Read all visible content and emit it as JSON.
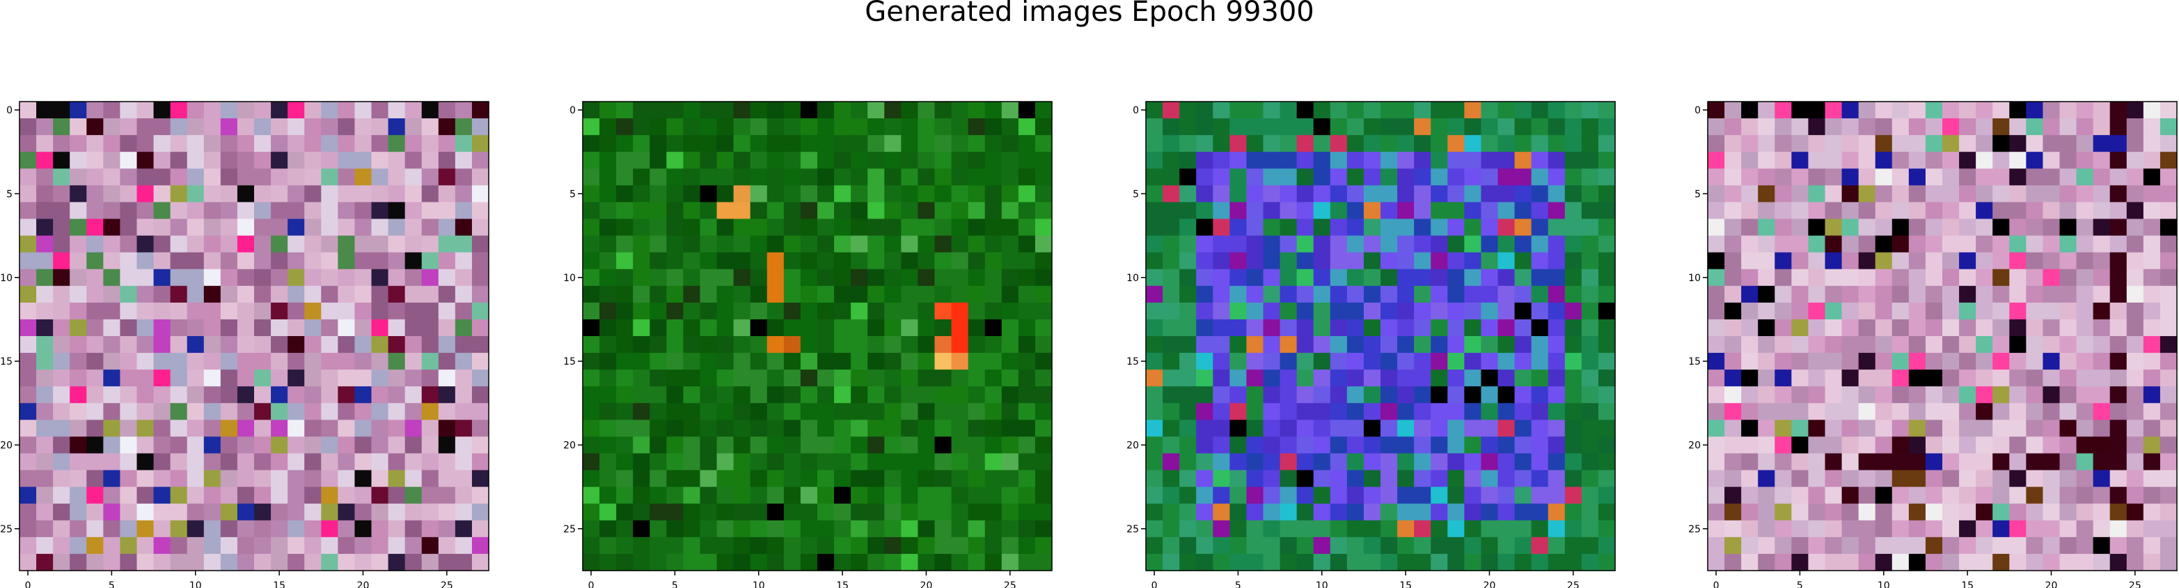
{
  "figure": {
    "title": "Generated images Epoch 99300"
  },
  "chart_data": [
    {
      "type": "heatmap",
      "title": "",
      "grid": false,
      "grid_size": [
        28,
        28
      ],
      "xlim": [
        -0.5,
        27.5
      ],
      "ylim": [
        27.5,
        -0.5
      ],
      "xticks": [
        0,
        5,
        10,
        15,
        20,
        25
      ],
      "yticks": [
        0,
        5,
        10,
        15,
        20,
        25
      ],
      "palette": [
        "#d4a3c8",
        "#c98bb8",
        "#e6c4d8",
        "#b884b0",
        "#a36a98",
        "#dcb6d0",
        "#8f5a86",
        "#e0d0e4",
        "#c4a0bc",
        "#b07aa4",
        "#d9b0cc",
        "#a8a8c8"
      ],
      "accents": [
        "#3a0010",
        "#6a0a30",
        "#2a1a40",
        "#ff2090",
        "#c040c0",
        "#9aa040",
        "#4a8a4a",
        "#f0f0f8",
        "#0a0a0a",
        "#1a2aa0",
        "#c09020",
        "#70c0a0"
      ],
      "accent_rate": 0.22,
      "seed": 11
    },
    {
      "type": "heatmap",
      "title": "",
      "grid": false,
      "grid_size": [
        28,
        28
      ],
      "xlim": [
        -0.5,
        27.5
      ],
      "ylim": [
        27.5,
        -0.5
      ],
      "xticks": [
        0,
        5,
        10,
        15,
        20,
        25
      ],
      "yticks": [
        0,
        5,
        10,
        15,
        20,
        25
      ],
      "palette": [
        "#0b6a0b",
        "#136f13",
        "#0e5a0e",
        "#1a7a1a",
        "#0a5a08",
        "#177d10",
        "#0f6410",
        "#1e8a1e",
        "#08500a",
        "#2a8a2a"
      ],
      "accents": [
        "#33a833",
        "#000000",
        "#1a3a10",
        "#52b052",
        "#3ac03a"
      ],
      "accent_rate": 0.08,
      "highlights": [
        {
          "row": 6,
          "col": 8,
          "color": "#f0a040"
        },
        {
          "row": 6,
          "col": 9,
          "color": "#f0a040"
        },
        {
          "row": 5,
          "col": 9,
          "color": "#e89a40"
        },
        {
          "row": 9,
          "col": 11,
          "color": "#e07a10"
        },
        {
          "row": 10,
          "col": 11,
          "color": "#e07a10"
        },
        {
          "row": 11,
          "col": 11,
          "color": "#e07a10"
        },
        {
          "row": 14,
          "col": 11,
          "color": "#e07a10"
        },
        {
          "row": 14,
          "col": 12,
          "color": "#c86010"
        },
        {
          "row": 12,
          "col": 21,
          "color": "#ff5020"
        },
        {
          "row": 12,
          "col": 22,
          "color": "#ff3010"
        },
        {
          "row": 13,
          "col": 22,
          "color": "#ff3010"
        },
        {
          "row": 14,
          "col": 21,
          "color": "#e87030"
        },
        {
          "row": 14,
          "col": 22,
          "color": "#ff3010"
        },
        {
          "row": 15,
          "col": 21,
          "color": "#f8c060"
        },
        {
          "row": 15,
          "col": 22,
          "color": "#f09040"
        },
        {
          "row": 5,
          "col": 7,
          "color": "#000000"
        },
        {
          "row": 13,
          "col": 10,
          "color": "#000000"
        }
      ],
      "seed": 23
    },
    {
      "type": "heatmap",
      "title": "",
      "grid": false,
      "grid_size": [
        28,
        28
      ],
      "xlim": [
        -0.5,
        27.5
      ],
      "ylim": [
        27.5,
        -0.5
      ],
      "xticks": [
        0,
        5,
        10,
        15,
        20,
        25
      ],
      "yticks": [
        0,
        5,
        10,
        15,
        20,
        25
      ],
      "palette": [
        "#1a8a3a",
        "#10702a",
        "#2a9a5a",
        "#0f6a30",
        "#30a070",
        "#188a50"
      ],
      "inner_palette": [
        "#5a40e0",
        "#4a30c8",
        "#7050f0",
        "#3a3ad0",
        "#6a5ae8",
        "#2040b0",
        "#8060e8",
        "#40a0c0"
      ],
      "inner_box": [
        3,
        3,
        24,
        24
      ],
      "accents": [
        "#d03060",
        "#e08030",
        "#000000",
        "#20c0d0",
        "#8a10a0",
        "#30c060"
      ],
      "accent_rate": 0.1,
      "seed": 37
    },
    {
      "type": "heatmap",
      "title": "",
      "grid": false,
      "grid_size": [
        28,
        28
      ],
      "xlim": [
        -0.5,
        27.5
      ],
      "ylim": [
        27.5,
        -0.5
      ],
      "xticks": [
        0,
        5,
        10,
        15,
        20,
        25
      ],
      "yticks": [
        0,
        5,
        10,
        15,
        20,
        25
      ],
      "palette": [
        "#d8a0c8",
        "#c88ab8",
        "#e8c8dc",
        "#b888b0",
        "#d0b0d0",
        "#e0b8d0",
        "#c0a0c0",
        "#a878a0",
        "#d8c0d8",
        "#e8d0e0"
      ],
      "accents": [
        "#3a0010",
        "#000000",
        "#1a1aa0",
        "#ff40a0",
        "#60c0a0",
        "#a0a040",
        "#2a0a2a",
        "#f0f0f0",
        "#6a3a10"
      ],
      "accent_rate": 0.2,
      "dark_column": 24,
      "dark_row": 21,
      "seed": 53
    }
  ]
}
